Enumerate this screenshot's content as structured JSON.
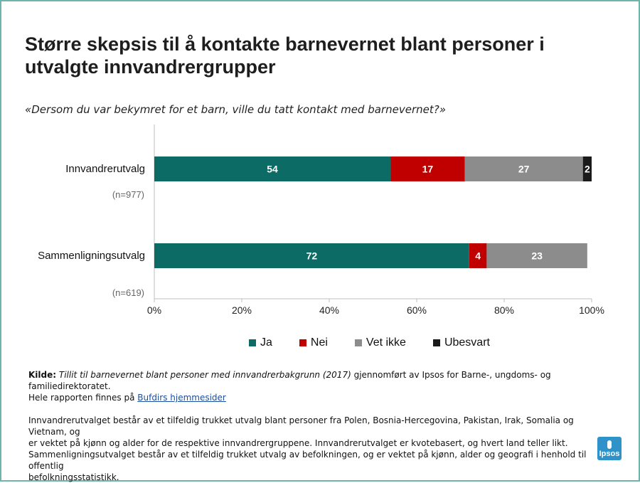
{
  "title": "Større skepsis til å kontakte barnevernet blant personer i utvalgte innvandrergrupper",
  "subtitle": "«Dersom du var bekymret for et barn, ville du tatt kontakt med barnevernet?»",
  "chart_data": {
    "type": "bar",
    "orientation": "horizontal",
    "stacked": true,
    "categories": [
      "Innvandrerutvalg",
      "Sammenligningsutvalg"
    ],
    "sample_sizes": [
      "(n=977)",
      "(n=619)"
    ],
    "series": [
      {
        "name": "Ja",
        "color": "#0d6b66",
        "values": [
          54,
          72
        ]
      },
      {
        "name": "Nei",
        "color": "#c00000",
        "values": [
          17,
          4
        ]
      },
      {
        "name": "Vet ikke",
        "color": "#8c8c8c",
        "values": [
          27,
          23
        ]
      },
      {
        "name": "Ubesvart",
        "color": "#1a1a1a",
        "values": [
          2,
          0
        ]
      }
    ],
    "xlim": [
      0,
      100
    ],
    "x_ticks": [
      "0%",
      "20%",
      "40%",
      "60%",
      "80%",
      "100%"
    ],
    "legend_position": "bottom"
  },
  "footer": {
    "source_label": "Kilde:",
    "source_title": "Tillit til barnevernet blant personer med innvandrerbakgrunn (2017)",
    "source_rest": " gjennomført av Ipsos for Barne-, ungdoms- og familiedirektoratet.",
    "report_text": "Hele rapporten finnes på ",
    "report_link": "Bufdirs hjemmesider",
    "note_1": "Innvandrerutvalget består av et tilfeldig trukket utvalg blant personer fra Polen, Bosnia-Hercegovina, Pakistan, Irak, Somalia og Vietnam, og",
    "note_2": "er vektet på kjønn og alder for de respektive innvandrergruppene. Innvandrerutvalget er kvotebasert, og hvert land teller likt.",
    "note_3": "Sammenligningsutvalget består av et tilfeldig trukket utvalg av befolkningen, og er vektet på kjønn, alder og geografi i henhold til offentlig",
    "note_4": "befolkningsstatistikk."
  },
  "logo_text": "Ipsos"
}
